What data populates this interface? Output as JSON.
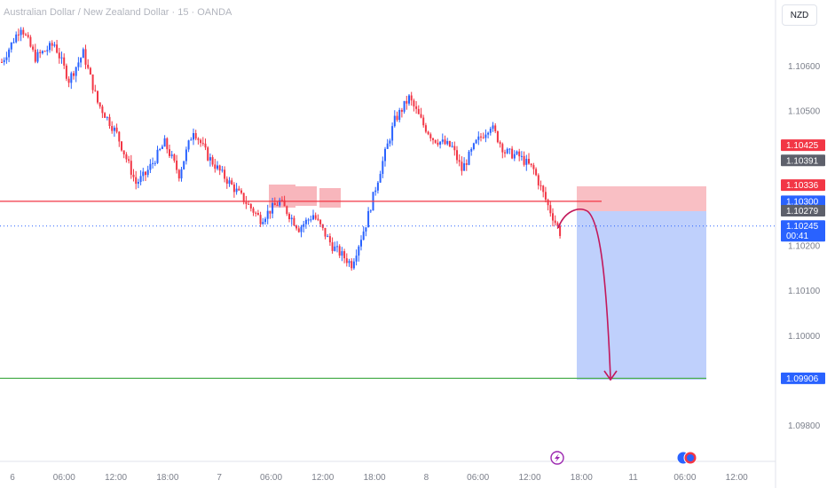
{
  "header": {
    "symbol_title": "Australian Dollar / New Zealand Dollar · 15 · OANDA",
    "currency": "NZD"
  },
  "chart_data": {
    "type": "candlestick",
    "ylim": [
      1.0975,
      1.107
    ],
    "y_ticks": [
      "1.10600",
      "1.10500",
      "1.10200",
      "1.10100",
      "1.10000",
      "1.09800"
    ],
    "x_ticks": [
      "6",
      "06:00",
      "12:00",
      "18:00",
      "7",
      "06:00",
      "12:00",
      "18:00",
      "8",
      "06:00",
      "12:00",
      "18:00",
      "11",
      "06:00",
      "12:00"
    ],
    "price_tags": [
      {
        "label": "1.10425",
        "value": 1.10425,
        "color": "#f23645"
      },
      {
        "label": "1.10391",
        "value": 1.10391,
        "color": "#5d606b"
      },
      {
        "label": "1.10336",
        "value": 1.10336,
        "color": "#f23645"
      },
      {
        "label": "1.10300",
        "value": 1.103,
        "color": "#2962ff"
      },
      {
        "label": "1.10279",
        "value": 1.10279,
        "color": "#5d606b"
      },
      {
        "label": "1.10245",
        "value": 1.10245,
        "color": "#2962ff",
        "sub": "00:41"
      },
      {
        "label": "1.09906",
        "value": 1.09906,
        "color": "#2962ff"
      }
    ],
    "resistance_level": 1.103,
    "target_level": 1.09906,
    "last_price": 1.10245,
    "trade_box": {
      "entry": 1.10279,
      "stop": 1.10336,
      "target": 1.09906
    },
    "colors": {
      "up": "#2962ff",
      "down": "#f23645",
      "resistance": "#f23645",
      "target": "#4caf50",
      "arrow": "#c2185b"
    },
    "events": [
      "lightning-icon",
      "currency-flag-icons"
    ],
    "keypoints": [
      [
        0,
        1.1061
      ],
      [
        8,
        1.1069
      ],
      [
        14,
        1.1062
      ],
      [
        22,
        1.1065
      ],
      [
        28,
        1.1057
      ],
      [
        34,
        1.1063
      ],
      [
        40,
        1.1052
      ],
      [
        48,
        1.1045
      ],
      [
        56,
        1.1034
      ],
      [
        60,
        1.1036
      ],
      [
        68,
        1.1043
      ],
      [
        74,
        1.1036
      ],
      [
        80,
        1.1046
      ],
      [
        86,
        1.104
      ],
      [
        92,
        1.1036
      ],
      [
        100,
        1.1031
      ],
      [
        108,
        1.1026
      ],
      [
        116,
        1.103
      ],
      [
        124,
        1.1024
      ],
      [
        130,
        1.1027
      ],
      [
        138,
        1.102
      ],
      [
        146,
        1.1016
      ],
      [
        152,
        1.1025
      ],
      [
        158,
        1.1037
      ],
      [
        164,
        1.1048
      ],
      [
        170,
        1.1053
      ],
      [
        176,
        1.1047
      ],
      [
        180,
        1.1044
      ],
      [
        188,
        1.1042
      ],
      [
        192,
        1.1037
      ],
      [
        198,
        1.1043
      ],
      [
        204,
        1.1047
      ],
      [
        210,
        1.1041
      ],
      [
        216,
        1.104
      ],
      [
        222,
        1.1037
      ],
      [
        228,
        1.1029
      ],
      [
        233,
        1.1023
      ]
    ]
  }
}
